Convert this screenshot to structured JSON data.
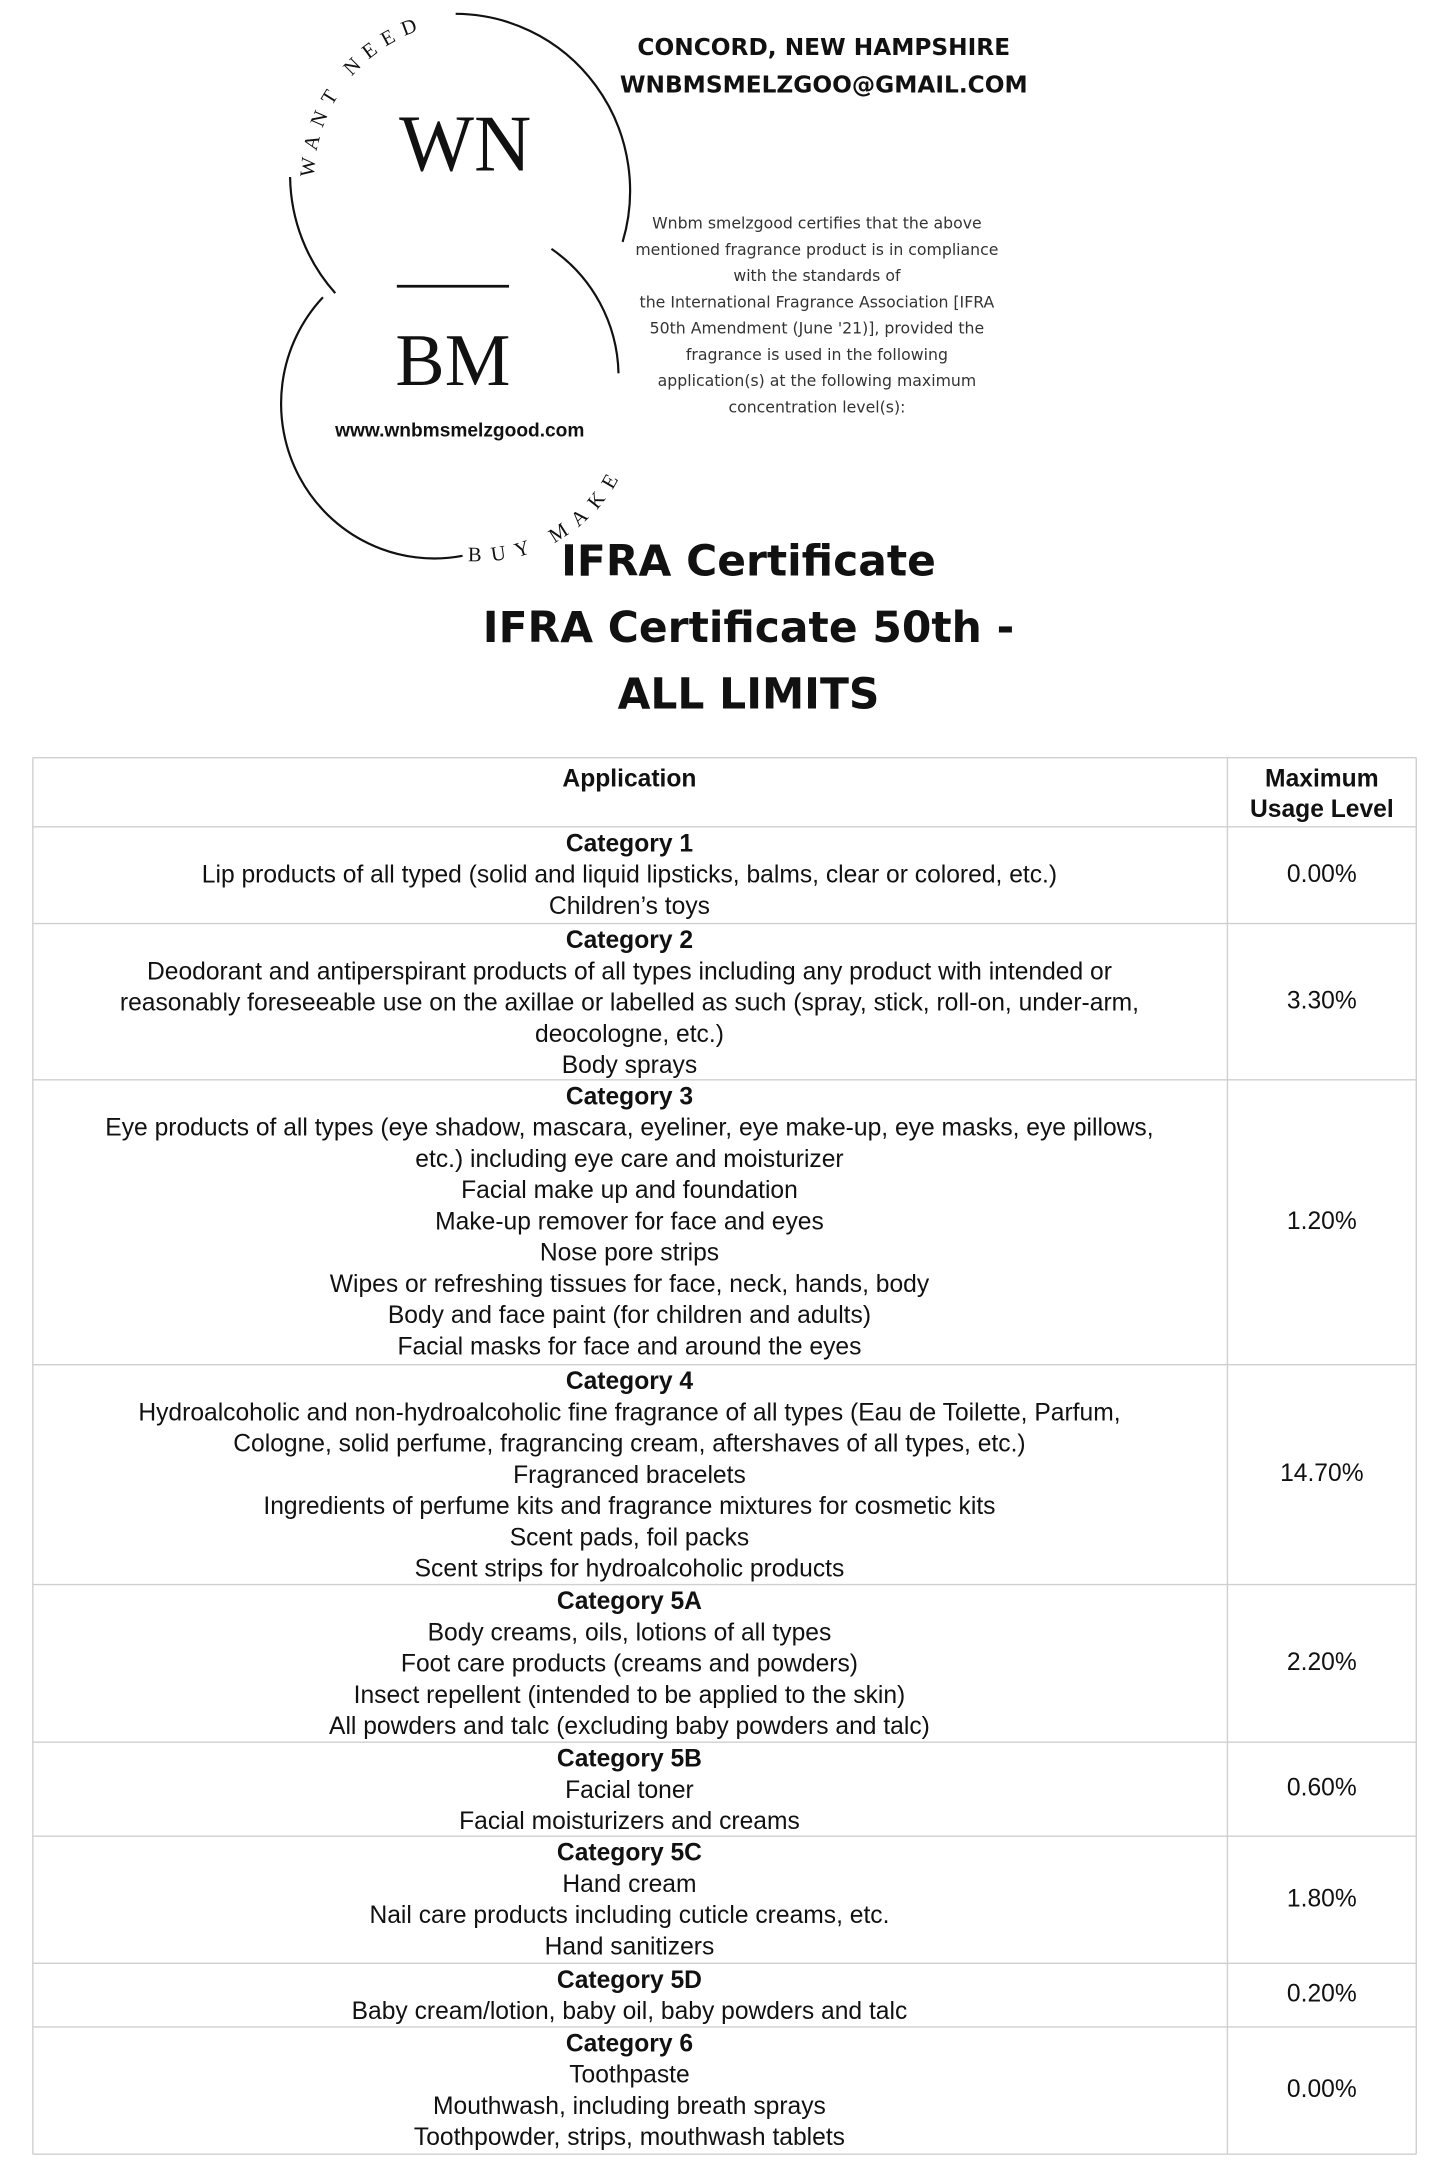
{
  "header": {
    "location": "CONCORD, NEW HAMPSHIRE",
    "email": "WNBMSMELZGOO@GMAIL.COM",
    "certification": [
      "Wnbm smelzgood certifies that the above",
      "mentioned fragrance product is in compliance",
      "with the standards of",
      "the International Fragrance Association [IFRA",
      "50th Amendment (June '21)], provided the",
      "fragrance is used in the following",
      "application(s) at the following maximum",
      "concentration level(s):"
    ]
  },
  "logo": {
    "top_arc": "WANT NEED",
    "initials_top": "WN",
    "initials_bottom": "BM",
    "website": "www.wnbmsmelzgood.com",
    "bottom_arc": "BUY MAKE"
  },
  "title": [
    "IFRA Certificate",
    "IFRA Certificate 50th -",
    "ALL LIMITS"
  ],
  "table": {
    "headers": [
      "Application",
      [
        "Maximum",
        "Usage Level"
      ]
    ],
    "rows": [
      {
        "category": "Category 1",
        "items": [
          "Lip products of all typed (solid and liquid lipsticks, balms, clear or colored, etc.)",
          "Children’s toys"
        ],
        "level": "0.00%"
      },
      {
        "category": "Category 2",
        "items": [
          "Deodorant and antiperspirant products of all types including any product with intended or",
          "reasonably foreseeable use on the axillae or labelled as such (spray, stick, roll-on, under-arm,",
          "deocologne, etc.)",
          "Body sprays"
        ],
        "level": "3.30%"
      },
      {
        "category": "Category 3",
        "items": [
          "Eye products of all types (eye shadow, mascara, eyeliner, eye make-up, eye masks, eye pillows,",
          "etc.) including eye care and moisturizer",
          "Facial make up and foundation",
          "Make-up remover for face and eyes",
          "Nose pore strips",
          "Wipes or refreshing tissues for face, neck, hands, body",
          "Body and face paint (for children and adults)",
          "Facial masks for face and around the eyes"
        ],
        "level": "1.20%"
      },
      {
        "category": "Category 4",
        "items": [
          "Hydroalcoholic and non-hydroalcoholic fine fragrance of all types (Eau de Toilette, Parfum,",
          "Cologne, solid perfume, fragrancing cream, aftershaves of all types, etc.)",
          "Fragranced bracelets",
          "Ingredients of perfume kits and fragrance mixtures for cosmetic kits",
          "Scent pads, foil packs",
          "Scent strips for hydroalcoholic products"
        ],
        "level": "14.70%"
      },
      {
        "category": "Category 5A",
        "items": [
          "Body creams, oils, lotions of all types",
          "Foot care products (creams and powders)",
          "Insect repellent (intended to be applied to the skin)",
          "All powders and talc (excluding baby powders and talc)"
        ],
        "level": "2.20%"
      },
      {
        "category": "Category 5B",
        "items": [
          "Facial toner",
          "Facial moisturizers and creams"
        ],
        "level": "0.60%"
      },
      {
        "category": "Category 5C",
        "items": [
          "Hand cream",
          "Nail care products including cuticle creams, etc.",
          "Hand sanitizers"
        ],
        "level": "1.80%"
      },
      {
        "category": "Category 5D",
        "items": [
          "Baby cream/lotion, baby oil, baby powders and talc"
        ],
        "level": "0.20%"
      },
      {
        "category": "Category 6",
        "items": [
          "Toothpaste",
          "Mouthwash, including breath sprays",
          "Toothpowder, strips, mouthwash tablets"
        ],
        "level": "0.00%"
      }
    ]
  }
}
